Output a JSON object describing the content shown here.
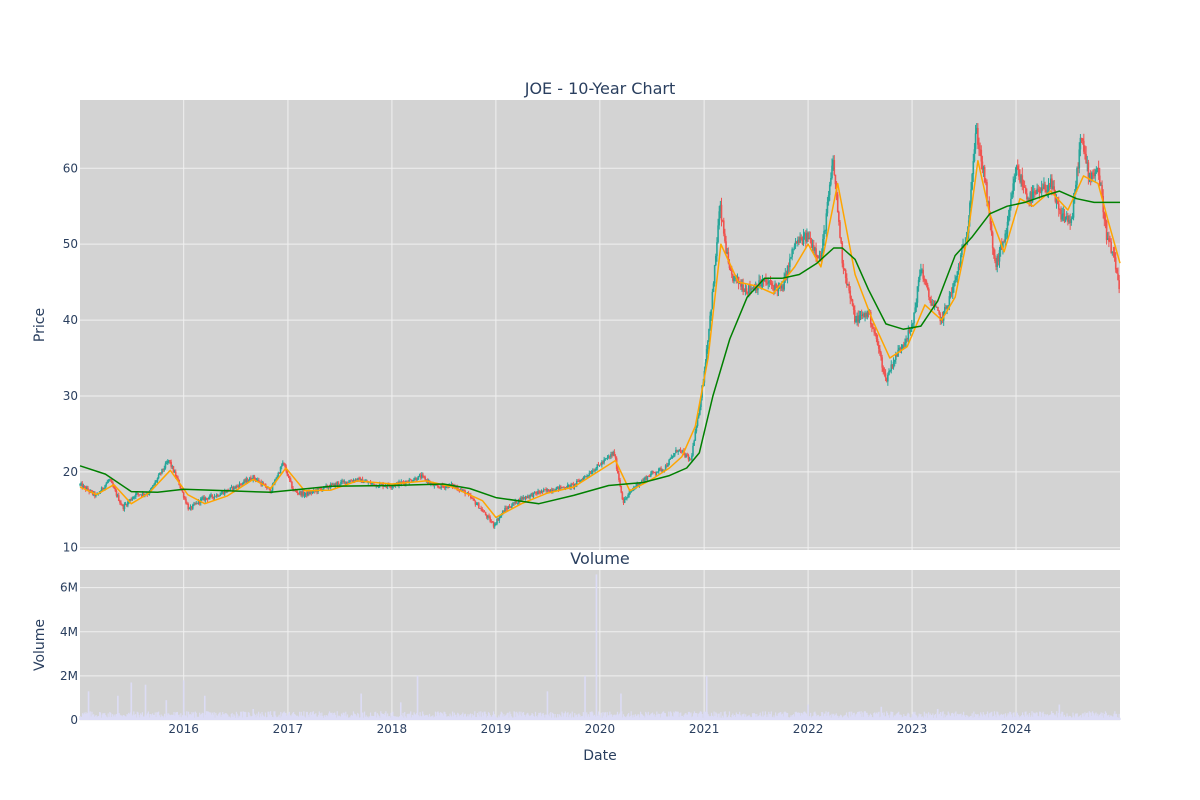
{
  "chart_data": [
    {
      "type": "candlestick",
      "title": "JOE - 10-Year Chart",
      "xlabel": "",
      "ylabel": "Price",
      "ylim": [
        9.7,
        69
      ],
      "xlim": [
        "2015-01-02",
        "2024-12-31"
      ],
      "yticks": [
        10,
        20,
        30,
        40,
        50,
        60
      ],
      "grid": true,
      "colors": {
        "plot_bg": "#d3d3d3",
        "grid": "#f0f0f0",
        "up": "#26a69a",
        "down": "#ef5350",
        "ma_short": "#ffa500",
        "ma_long": "#008000"
      },
      "series": [
        {
          "kind": "close",
          "dates": [
            "2015-01-02",
            "2015-03-01",
            "2015-04-15",
            "2015-06-01",
            "2015-07-15",
            "2015-09-01",
            "2015-10-15",
            "2015-11-10",
            "2015-12-15",
            "2016-01-20",
            "2016-03-01",
            "2016-05-01",
            "2016-07-01",
            "2016-09-01",
            "2016-11-01",
            "2016-12-15",
            "2017-01-20",
            "2017-03-01",
            "2017-05-01",
            "2017-07-01",
            "2017-09-01",
            "2017-11-01",
            "2018-01-01",
            "2018-03-01",
            "2018-04-15",
            "2018-06-01",
            "2018-08-01",
            "2018-09-15",
            "2018-11-01",
            "2018-12-24",
            "2019-02-01",
            "2019-04-01",
            "2019-06-01",
            "2019-08-01",
            "2019-10-01",
            "2019-12-01",
            "2020-02-20",
            "2020-03-23",
            "2020-05-01",
            "2020-07-01",
            "2020-08-15",
            "2020-10-01",
            "2020-11-15",
            "2020-12-10",
            "2021-01-01",
            "2021-02-01",
            "2021-02-25",
            "2021-04-01",
            "2021-06-01",
            "2021-08-01",
            "2021-10-01",
            "2021-11-15",
            "2022-01-01",
            "2022-02-15",
            "2022-03-30",
            "2022-05-01",
            "2022-06-15",
            "2022-08-01",
            "2022-09-01",
            "2022-10-01",
            "2022-10-15",
            "2022-11-15",
            "2023-01-01",
            "2023-02-01",
            "2023-03-01",
            "2023-04-15",
            "2023-06-01",
            "2023-07-15",
            "2023-08-01",
            "2023-08-15",
            "2023-09-15",
            "2023-10-20",
            "2023-12-01",
            "2024-01-01",
            "2024-02-15",
            "2024-04-01",
            "2024-05-01",
            "2024-06-01",
            "2024-07-15",
            "2024-08-15",
            "2024-09-15",
            "2024-10-15",
            "2024-11-15",
            "2024-12-10",
            "2024-12-31"
          ],
          "values": [
            18.3,
            16.8,
            19.0,
            15.3,
            17.0,
            17.2,
            20.0,
            21.5,
            18.5,
            15.0,
            16.3,
            17.0,
            18.0,
            19.3,
            17.5,
            21.2,
            17.5,
            17.0,
            17.8,
            18.5,
            19.0,
            18.3,
            18.2,
            18.8,
            19.4,
            18.0,
            18.2,
            17.3,
            15.5,
            13.0,
            15.0,
            16.5,
            17.3,
            17.8,
            18.2,
            20.0,
            22.5,
            16.0,
            18.0,
            19.8,
            20.5,
            23.0,
            21.5,
            27.0,
            33.0,
            44.0,
            55.0,
            46.0,
            44.0,
            45.0,
            44.0,
            50.0,
            51.0,
            48.0,
            61.0,
            48.0,
            40.0,
            41.0,
            37.0,
            32.0,
            33.5,
            36.0,
            39.0,
            47.0,
            43.0,
            40.0,
            45.0,
            52.0,
            60.0,
            65.0,
            58.0,
            47.0,
            52.0,
            60.0,
            56.0,
            57.0,
            58.0,
            54.0,
            53.0,
            64.0,
            59.0,
            60.0,
            51.0,
            48.0,
            44.0
          ]
        },
        {
          "kind": "ma_short",
          "dates": [
            "2015-01-02",
            "2015-03-01",
            "2015-05-01",
            "2015-07-01",
            "2015-09-01",
            "2015-11-15",
            "2016-01-15",
            "2016-03-15",
            "2016-06-01",
            "2016-09-01",
            "2016-11-01",
            "2016-12-25",
            "2017-03-01",
            "2017-06-01",
            "2017-09-01",
            "2018-01-01",
            "2018-05-01",
            "2018-08-01",
            "2018-11-15",
            "2019-01-01",
            "2019-04-01",
            "2019-07-01",
            "2019-10-01",
            "2020-02-25",
            "2020-04-15",
            "2020-07-01",
            "2020-09-01",
            "2020-10-15",
            "2020-12-01",
            "2021-01-15",
            "2021-03-01",
            "2021-05-01",
            "2021-07-01",
            "2021-09-01",
            "2021-11-15",
            "2022-01-01",
            "2022-02-15",
            "2022-04-15",
            "2022-06-15",
            "2022-08-15",
            "2022-10-15",
            "2022-12-15",
            "2023-02-15",
            "2023-04-15",
            "2023-06-01",
            "2023-07-15",
            "2023-08-20",
            "2023-10-01",
            "2023-11-20",
            "2024-01-15",
            "2024-03-01",
            "2024-05-01",
            "2024-07-01",
            "2024-08-25",
            "2024-10-15",
            "2024-11-20",
            "2024-12-31"
          ],
          "values": [
            18.0,
            17.0,
            18.3,
            15.8,
            17.2,
            20.2,
            17.0,
            15.8,
            16.8,
            19.0,
            17.8,
            20.5,
            17.5,
            17.6,
            18.8,
            18.4,
            18.8,
            18.0,
            16.2,
            14.0,
            15.8,
            17.2,
            18.0,
            21.5,
            17.5,
            19.0,
            20.5,
            22.0,
            26.0,
            35.0,
            50.0,
            45.0,
            44.5,
            43.5,
            47.0,
            50.0,
            47.0,
            58.0,
            46.0,
            40.0,
            35.0,
            36.5,
            42.0,
            40.0,
            43.0,
            51.0,
            61.0,
            54.0,
            49.0,
            56.0,
            55.0,
            57.0,
            54.5,
            59.0,
            58.0,
            53.0,
            47.5
          ]
        },
        {
          "kind": "ma_long",
          "dates": [
            "2015-01-02",
            "2015-04-01",
            "2015-07-01",
            "2015-10-01",
            "2016-01-01",
            "2016-06-01",
            "2016-11-01",
            "2017-06-01",
            "2018-01-01",
            "2018-07-01",
            "2018-10-01",
            "2019-01-01",
            "2019-06-01",
            "2019-10-01",
            "2020-02-01",
            "2020-06-01",
            "2020-09-01",
            "2020-11-01",
            "2020-12-15",
            "2021-02-01",
            "2021-04-01",
            "2021-06-01",
            "2021-08-01",
            "2021-10-01",
            "2021-12-01",
            "2022-02-01",
            "2022-04-01",
            "2022-05-01",
            "2022-06-15",
            "2022-08-01",
            "2022-10-01",
            "2022-12-01",
            "2023-02-01",
            "2023-04-01",
            "2023-06-01",
            "2023-08-01",
            "2023-10-01",
            "2023-12-01",
            "2024-02-01",
            "2024-04-01",
            "2024-06-01",
            "2024-08-01",
            "2024-10-01",
            "2024-12-31"
          ],
          "values": [
            20.8,
            19.7,
            17.4,
            17.3,
            17.7,
            17.5,
            17.3,
            18.1,
            18.2,
            18.4,
            17.8,
            16.6,
            15.8,
            16.9,
            18.2,
            18.6,
            19.5,
            20.5,
            22.5,
            30.0,
            37.5,
            43.0,
            45.5,
            45.5,
            46.0,
            47.5,
            49.5,
            49.5,
            48.0,
            44.0,
            39.5,
            38.8,
            39.2,
            42.5,
            48.5,
            51.0,
            54.0,
            55.0,
            55.5,
            56.3,
            57.0,
            56.0,
            55.5,
            55.5
          ]
        }
      ]
    },
    {
      "type": "bar",
      "title": "Volume",
      "xlabel": "Date",
      "ylabel": "Volume",
      "ylim": [
        0,
        6800000
      ],
      "yticks": [
        0,
        2000000,
        4000000,
        6000000
      ],
      "ytick_labels": [
        "0",
        "2M",
        "4M",
        "6M"
      ],
      "xticks": [
        "2016-01-01",
        "2017-01-01",
        "2018-01-01",
        "2019-01-01",
        "2020-01-01",
        "2021-01-01",
        "2022-01-01",
        "2023-01-01",
        "2024-01-01"
      ],
      "xtick_labels": [
        "2016",
        "2017",
        "2018",
        "2019",
        "2020",
        "2021",
        "2022",
        "2023",
        "2024"
      ],
      "colors": {
        "plot_bg": "#d3d3d3",
        "bar": "#dcdcf5",
        "grid": "#f0f0f0"
      },
      "grid": true,
      "baseline": 250000,
      "spikes": [
        {
          "date": "2015-02-01",
          "value": 1300000
        },
        {
          "date": "2015-05-15",
          "value": 1100000
        },
        {
          "date": "2015-07-01",
          "value": 1700000
        },
        {
          "date": "2015-08-20",
          "value": 1600000
        },
        {
          "date": "2015-11-01",
          "value": 900000
        },
        {
          "date": "2016-01-01",
          "value": 1800000
        },
        {
          "date": "2016-03-15",
          "value": 1100000
        },
        {
          "date": "2016-09-01",
          "value": 500000
        },
        {
          "date": "2017-09-15",
          "value": 1200000
        },
        {
          "date": "2018-02-01",
          "value": 800000
        },
        {
          "date": "2018-04-01",
          "value": 2000000
        },
        {
          "date": "2019-07-01",
          "value": 1300000
        },
        {
          "date": "2019-11-10",
          "value": 2000000
        },
        {
          "date": "2019-12-20",
          "value": 6600000
        },
        {
          "date": "2020-03-15",
          "value": 1200000
        },
        {
          "date": "2021-01-10",
          "value": 2000000
        },
        {
          "date": "2022-01-01",
          "value": 700000
        },
        {
          "date": "2022-09-15",
          "value": 600000
        },
        {
          "date": "2023-04-01",
          "value": 500000
        },
        {
          "date": "2024-06-01",
          "value": 700000
        }
      ]
    }
  ]
}
